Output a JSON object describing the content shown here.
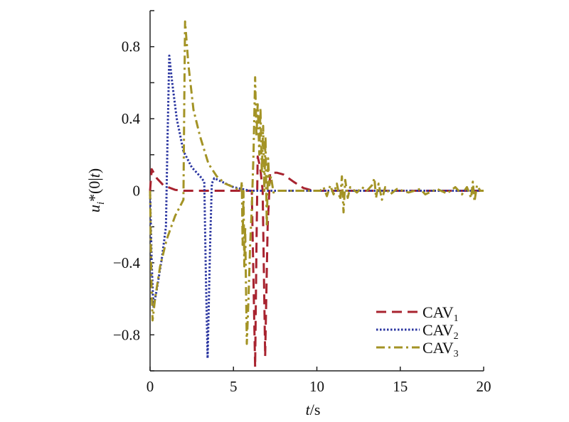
{
  "chart_data": {
    "type": "line",
    "title": "",
    "xlabel": {
      "italic": "t",
      "rest": "/s"
    },
    "ylabel": {
      "base": "u",
      "sub": "i",
      "rest": "*(0|",
      "italic2": "t",
      "end": ")"
    },
    "xlim": [
      0,
      20
    ],
    "ylim": [
      -1,
      1
    ],
    "xticks": [
      0,
      5,
      10,
      15,
      20
    ],
    "xtick_labels": [
      "0",
      "5",
      "10",
      "15",
      "20"
    ],
    "yticks": [
      0.8,
      0.4,
      0,
      -0.4,
      -0.8
    ],
    "ytick_labels": [
      "0.8",
      "0.4",
      "0",
      "−0.4",
      "−0.8"
    ],
    "yminor_ticks": [
      1.0,
      0.6,
      0.2,
      -0.2,
      -0.6,
      -1.0
    ],
    "grid": false,
    "legend_position": "bottom-right",
    "series": [
      {
        "name": "CAV1",
        "label": "CAV",
        "sub": "1",
        "color": "#a8232f",
        "dash": "dashed",
        "points": [
          [
            0,
            0
          ],
          [
            0.1,
            0.12
          ],
          [
            0.4,
            0.07
          ],
          [
            0.8,
            0.03
          ],
          [
            1.5,
            0.005
          ],
          [
            2,
            0
          ],
          [
            6.1,
            0
          ],
          [
            6.2,
            -0.5
          ],
          [
            6.3,
            -0.98
          ],
          [
            6.38,
            -0.3
          ],
          [
            6.45,
            0.19
          ],
          [
            6.6,
            0.13
          ],
          [
            6.75,
            0.0
          ],
          [
            6.9,
            -0.92
          ],
          [
            7.05,
            -0.2
          ],
          [
            7.2,
            0.1
          ],
          [
            7.6,
            0.1
          ],
          [
            8.0,
            0.09
          ],
          [
            8.6,
            0.05
          ],
          [
            9.2,
            0.015
          ],
          [
            9.8,
            0
          ],
          [
            20,
            0
          ]
        ]
      },
      {
        "name": "CAV2",
        "label": "CAV",
        "sub": "2",
        "color": "#2a35a0",
        "dash": "dotted",
        "points": [
          [
            0,
            0
          ],
          [
            0.1,
            -0.4
          ],
          [
            0.2,
            -0.65
          ],
          [
            0.4,
            -0.55
          ],
          [
            0.7,
            -0.38
          ],
          [
            0.95,
            -0.2
          ],
          [
            1.05,
            0.3
          ],
          [
            1.15,
            0.75
          ],
          [
            1.3,
            0.62
          ],
          [
            1.6,
            0.4
          ],
          [
            2.0,
            0.22
          ],
          [
            2.5,
            0.13
          ],
          [
            3.0,
            0.08
          ],
          [
            3.25,
            0.05
          ],
          [
            3.35,
            -0.5
          ],
          [
            3.45,
            -0.93
          ],
          [
            3.6,
            -0.3
          ],
          [
            3.7,
            0.04
          ],
          [
            3.85,
            0.07
          ],
          [
            4.3,
            0.05
          ],
          [
            5.0,
            0.02
          ],
          [
            6.0,
            0
          ],
          [
            20,
            0
          ]
        ]
      },
      {
        "name": "CAV3",
        "label": "CAV",
        "sub": "3",
        "color": "#a39325",
        "dash": "dashdot",
        "points": [
          [
            0,
            0
          ],
          [
            0.08,
            -0.5
          ],
          [
            0.15,
            -0.72
          ],
          [
            0.3,
            -0.6
          ],
          [
            0.6,
            -0.42
          ],
          [
            1.0,
            -0.27
          ],
          [
            1.5,
            -0.14
          ],
          [
            2.0,
            -0.05
          ],
          [
            2.05,
            0.5
          ],
          [
            2.1,
            0.94
          ],
          [
            2.3,
            0.7
          ],
          [
            2.6,
            0.45
          ],
          [
            3.0,
            0.3
          ],
          [
            3.5,
            0.15
          ],
          [
            4.0,
            0.08
          ],
          [
            4.5,
            0.04
          ],
          [
            5.0,
            0.02
          ],
          [
            5.45,
            0
          ],
          [
            5.5,
            0.05
          ],
          [
            5.55,
            -0.3
          ],
          [
            5.6,
            0.0
          ],
          [
            5.65,
            -0.42
          ],
          [
            5.7,
            -0.2
          ],
          [
            5.8,
            -0.85
          ],
          [
            5.9,
            -0.6
          ],
          [
            6.0,
            -0.3
          ],
          [
            6.1,
            -0.1
          ],
          [
            6.2,
            0.2
          ],
          [
            6.3,
            0.63
          ],
          [
            6.38,
            0.3
          ],
          [
            6.45,
            0.48
          ],
          [
            6.55,
            0.2
          ],
          [
            6.62,
            0.46
          ],
          [
            6.7,
            0.1
          ],
          [
            6.78,
            0.36
          ],
          [
            6.85,
            0.0
          ],
          [
            6.92,
            0.3
          ],
          [
            7.0,
            -0.2
          ],
          [
            7.08,
            0.18
          ],
          [
            7.15,
            0.03
          ],
          [
            7.25,
            0.08
          ],
          [
            7.4,
            -0.01
          ],
          [
            7.6,
            0.0
          ],
          [
            10.2,
            0
          ],
          [
            10.4,
            0.02
          ],
          [
            10.6,
            -0.03
          ],
          [
            10.8,
            0.03
          ],
          [
            11.0,
            -0.02
          ],
          [
            11.2,
            0.04
          ],
          [
            11.4,
            -0.05
          ],
          [
            11.5,
            0.08
          ],
          [
            11.6,
            -0.12
          ],
          [
            11.7,
            0.06
          ],
          [
            11.85,
            -0.04
          ],
          [
            12.0,
            0.02
          ],
          [
            12.4,
            -0.01
          ],
          [
            12.7,
            0.02
          ],
          [
            13.0,
            0
          ],
          [
            13.3,
            0.03
          ],
          [
            13.45,
            0.07
          ],
          [
            13.55,
            -0.04
          ],
          [
            13.7,
            0.04
          ],
          [
            13.9,
            -0.05
          ],
          [
            14.1,
            0.02
          ],
          [
            14.4,
            -0.02
          ],
          [
            14.8,
            0.01
          ],
          [
            15.5,
            -0.01
          ],
          [
            16.2,
            0.01
          ],
          [
            16.5,
            -0.02
          ],
          [
            17.2,
            0.01
          ],
          [
            17.8,
            -0.015
          ],
          [
            18.3,
            0.02
          ],
          [
            18.7,
            -0.02
          ],
          [
            19.0,
            0.02
          ],
          [
            19.25,
            -0.04
          ],
          [
            19.35,
            0.05
          ],
          [
            19.45,
            -0.06
          ],
          [
            19.6,
            0.03
          ],
          [
            19.8,
            0
          ],
          [
            20,
            0
          ]
        ]
      }
    ]
  }
}
